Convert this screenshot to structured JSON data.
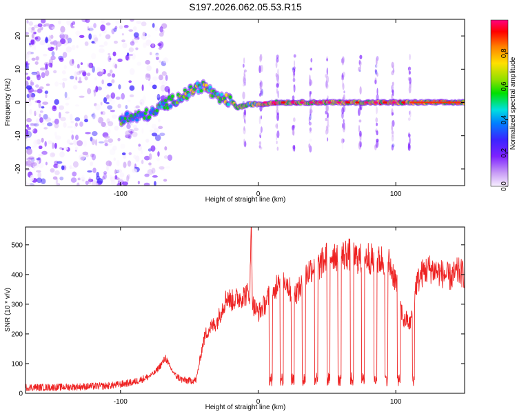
{
  "title": "S197.2026.062.05.53.R15",
  "chart_data": [
    {
      "type": "heatmap",
      "name": "spectrogram",
      "xlabel": "Height of straight line (km)",
      "ylabel": "Frequency (Hz)",
      "xlim": [
        -169,
        150
      ],
      "ylim": [
        -25,
        25
      ],
      "x_ticks": [
        -100,
        0,
        100
      ],
      "y_ticks": [
        -20,
        -10,
        0,
        10,
        20
      ],
      "grid": false,
      "colorbar": {
        "label": "Normalized spectral amplitude",
        "range": [
          0,
          1
        ],
        "ticks": [
          0.0,
          0.2,
          0.4,
          0.6,
          0.8
        ],
        "colormap": [
          "#f8f0ff",
          "#c89cf5",
          "#7e22ff",
          "#3b24ff",
          "#0080ff",
          "#00e0e0",
          "#00e000",
          "#90e000",
          "#ffe000",
          "#ff8000",
          "#ff0000",
          "#ff0080"
        ]
      },
      "ridge": {
        "x": [
          -100,
          -95,
          -90,
          -85,
          -80,
          -75,
          -70,
          -65,
          -60,
          -55,
          -50,
          -45,
          -40,
          -35,
          -30,
          -25,
          -20,
          -15,
          -10,
          -5,
          0,
          5,
          10,
          15,
          20,
          40,
          60,
          80,
          100,
          120,
          150
        ],
        "frequency": [
          -5,
          -4.5,
          -4.5,
          -4,
          -3.5,
          -3,
          -1,
          0,
          1,
          2,
          3,
          4.5,
          5,
          3.5,
          1,
          1,
          0.5,
          -1.5,
          -1,
          -0.5,
          -0.5,
          -0.5,
          0,
          0,
          0,
          0,
          0,
          0,
          0,
          0,
          0
        ]
      },
      "harmonic_streaks_x": [
        -10,
        2,
        14,
        26,
        38,
        50,
        62,
        74,
        86,
        98,
        110
      ]
    },
    {
      "type": "line",
      "name": "snr",
      "xlabel": "Height of straight line (km)",
      "ylabel": "SNR (10 * v/v)",
      "xlim": [
        -169,
        150
      ],
      "ylim": [
        0,
        560
      ],
      "x_ticks": [
        -100,
        0,
        100
      ],
      "y_ticks": [
        0,
        100,
        200,
        300,
        400,
        500
      ],
      "grid": false,
      "series": [
        {
          "name": "SNR",
          "color": "#ee2222",
          "x": [
            -169,
            -150,
            -130,
            -110,
            -100,
            -90,
            -80,
            -75,
            -70,
            -67,
            -65,
            -60,
            -55,
            -50,
            -45,
            -40,
            -38,
            -35,
            -30,
            -25,
            -22,
            -20,
            -15,
            -10,
            -6,
            -5,
            -4,
            0,
            5,
            8,
            10,
            15,
            20,
            25,
            30,
            35,
            40,
            45,
            50,
            55,
            60,
            65,
            70,
            75,
            80,
            85,
            90,
            95,
            100,
            103,
            106,
            108,
            110,
            112,
            115,
            120,
            125,
            130,
            135,
            140,
            145,
            150
          ],
          "y": [
            20,
            20,
            22,
            25,
            30,
            38,
            55,
            70,
            100,
            120,
            95,
            60,
            45,
            42,
            45,
            170,
            200,
            220,
            240,
            300,
            330,
            310,
            320,
            330,
            340,
            560,
            300,
            270,
            300,
            330,
            300,
            400,
            380,
            330,
            350,
            400,
            430,
            430,
            460,
            470,
            460,
            470,
            460,
            450,
            460,
            440,
            450,
            440,
            380,
            300,
            240,
            250,
            230,
            270,
            370,
            410,
            420,
            410,
            400,
            390,
            410,
            400
          ]
        }
      ],
      "dropout_x": [
        8,
        16,
        24,
        32,
        41,
        50,
        58,
        67,
        75,
        84,
        92,
        101,
        112
      ]
    }
  ]
}
